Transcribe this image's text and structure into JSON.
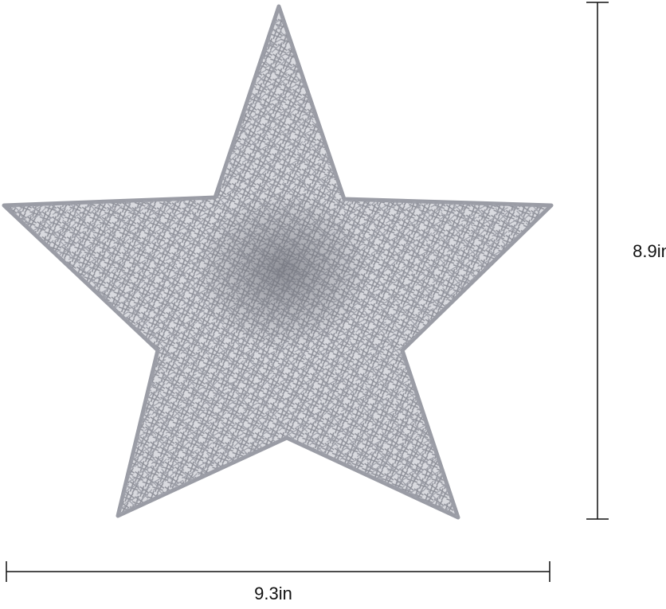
{
  "dimensions": {
    "height_label": "8.9in",
    "width_label": "9.3in"
  },
  "product": {
    "subject": "star-ornament",
    "color": "#a9abb3"
  }
}
